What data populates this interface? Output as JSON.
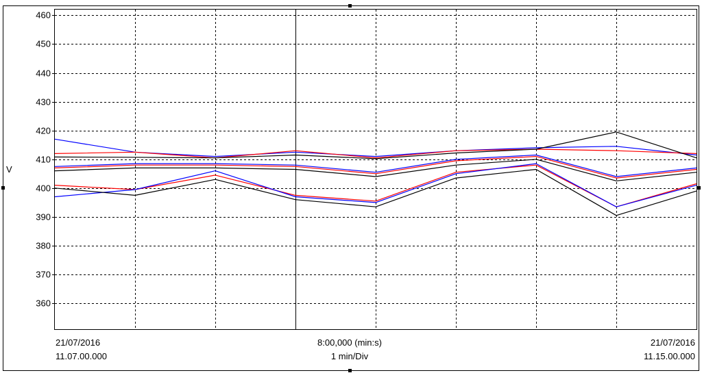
{
  "chart_data": {
    "type": "line",
    "ylabel": "V",
    "ylim": [
      351,
      462
    ],
    "y_ticks": [
      360,
      370,
      380,
      390,
      400,
      410,
      420,
      430,
      440,
      450,
      460
    ],
    "x_divisions": 8,
    "x_min": 0,
    "x_max": 8,
    "grid": true,
    "cursor_x": 3,
    "x_start_label": {
      "date": "21/07/2016",
      "time": "11.07.00.000"
    },
    "x_end_label": {
      "date": "21/07/2016",
      "time": "11.15.00.000"
    },
    "x_center_label": {
      "span": "8:00,000 (min:s)",
      "scale": "1 min/Div"
    },
    "x": [
      0,
      1,
      2,
      3,
      4,
      5,
      6,
      7,
      8
    ],
    "colors": {
      "black": "#000000",
      "red": "#ff0000",
      "blue": "#0000ff"
    },
    "series": [
      {
        "color": "#0000ff",
        "values": [
          417,
          412.5,
          411,
          412.5,
          411,
          413,
          414,
          414.5,
          411.5
        ]
      },
      {
        "color": "#ff0000",
        "values": [
          412,
          412.5,
          410.5,
          413,
          410.5,
          413,
          413.5,
          413,
          412
        ]
      },
      {
        "color": "#000000",
        "values": [
          410.8,
          410.7,
          410.5,
          411.5,
          410.2,
          412.2,
          413.5,
          419.5,
          410.5
        ]
      },
      {
        "color": "#0000ff",
        "values": [
          407.5,
          408.5,
          408.5,
          408,
          405.5,
          410,
          411.5,
          404,
          407
        ]
      },
      {
        "color": "#ff0000",
        "values": [
          407,
          408,
          408,
          407.5,
          405,
          409.5,
          411,
          403.5,
          406.5
        ]
      },
      {
        "color": "#000000",
        "values": [
          406,
          407,
          407,
          406.5,
          404,
          408,
          410,
          402.5,
          405.5
        ]
      },
      {
        "color": "#ff0000",
        "values": [
          401,
          399.5,
          404.5,
          397.5,
          395.5,
          405.5,
          408,
          393.5,
          401.5
        ]
      },
      {
        "color": "#0000ff",
        "values": [
          397,
          399.5,
          406,
          397,
          395,
          405,
          408.5,
          393.5,
          401
        ]
      },
      {
        "color": "#000000",
        "values": [
          400,
          397.5,
          403,
          396,
          393.5,
          403.5,
          406.5,
          390.5,
          399
        ]
      }
    ]
  }
}
